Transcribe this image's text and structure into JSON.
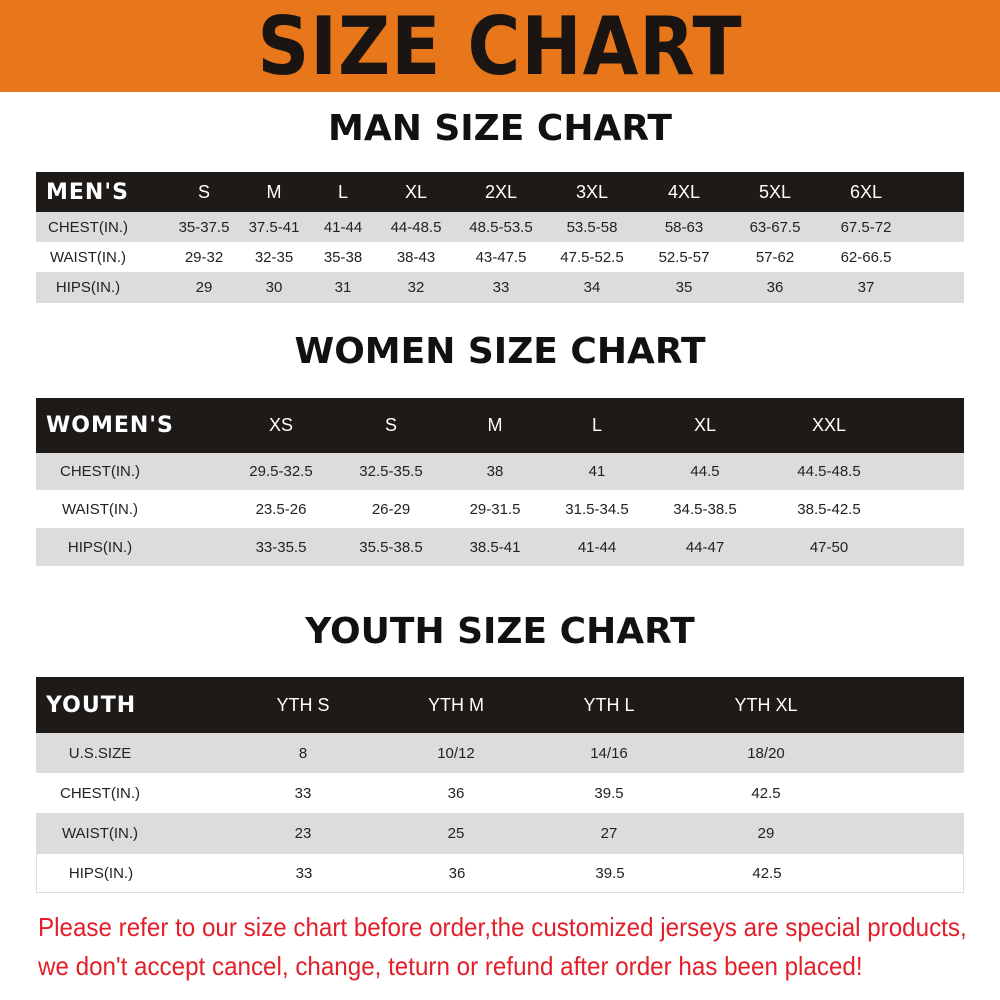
{
  "banner": {
    "title": "SIZE CHART",
    "color": "#E8761A"
  },
  "men": {
    "title": "MAN SIZE CHART",
    "header": [
      "MEN'S",
      "S",
      "M",
      "L",
      "XL",
      "2XL",
      "3XL",
      "4XL",
      "5XL",
      "6XL"
    ],
    "rows": [
      [
        "CHEST(IN.)",
        "35-37.5",
        "37.5-41",
        "41-44",
        "44-48.5",
        "48.5-53.5",
        "53.5-58",
        "58-63",
        "63-67.5",
        "67.5-72"
      ],
      [
        "WAIST(IN.)",
        "29-32",
        "32-35",
        "35-38",
        "38-43",
        "43-47.5",
        "47.5-52.5",
        "52.5-57",
        "57-62",
        "62-66.5"
      ],
      [
        "HIPS(IN.)",
        "29",
        "30",
        "31",
        "32",
        "33",
        "34",
        "35",
        "36",
        "37"
      ]
    ]
  },
  "women": {
    "title": "WOMEN SIZE CHART",
    "header": [
      "WOMEN'S",
      "XS",
      "S",
      "M",
      "L",
      "XL",
      "XXL"
    ],
    "rows": [
      [
        "CHEST(IN.)",
        "29.5-32.5",
        "32.5-35.5",
        "38",
        "41",
        "44.5",
        "44.5-48.5"
      ],
      [
        "WAIST(IN.)",
        "23.5-26",
        "26-29",
        "29-31.5",
        "31.5-34.5",
        "34.5-38.5",
        "38.5-42.5"
      ],
      [
        "HIPS(IN.)",
        "33-35.5",
        "35.5-38.5",
        "38.5-41",
        "41-44",
        "44-47",
        "47-50"
      ]
    ]
  },
  "youth": {
    "title": "YOUTH SIZE CHART",
    "header": [
      "YOUTH",
      "YTH S",
      "YTH M",
      "YTH L",
      "YTH XL"
    ],
    "rows": [
      [
        "U.S.SIZE",
        "8",
        "10/12",
        "14/16",
        "18/20"
      ],
      [
        "CHEST(IN.)",
        "33",
        "36",
        "39.5",
        "42.5"
      ],
      [
        "WAIST(IN.)",
        "23",
        "25",
        "27",
        "29"
      ],
      [
        "HIPS(IN.)",
        "33",
        "36",
        "39.5",
        "42.5"
      ]
    ]
  },
  "notice": {
    "line1": "Please refer to our size chart before order,the customized jerseys are special products,",
    "line2": "we don't accept cancel, change, teturn or refund after order has been placed!",
    "color": "#E3202A"
  }
}
